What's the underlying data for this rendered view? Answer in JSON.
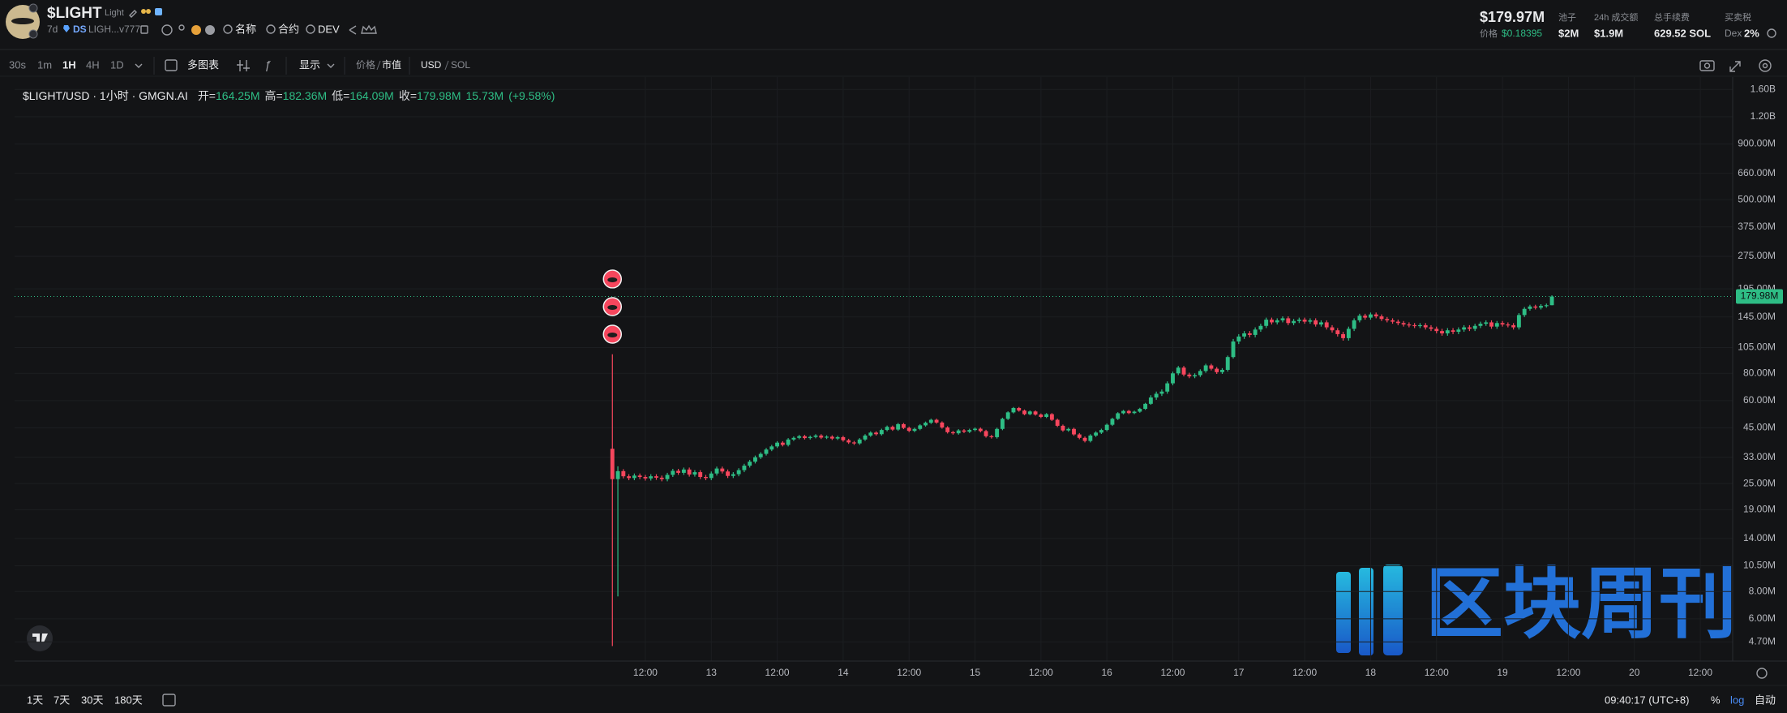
{
  "header": {
    "symbol": "$LIGHT",
    "name": "Light",
    "age": "7d",
    "tag": "DS",
    "address": "LIGH...v777",
    "search": [
      "名称",
      "合约",
      "DEV"
    ],
    "market_cap": "$179.97M",
    "price_label": "价格",
    "price": "$0.18395",
    "stats": [
      {
        "label": "池子",
        "value": "$2M"
      },
      {
        "label": "24h 成交额",
        "value": "$1.9M"
      },
      {
        "label": "总手续费",
        "value": "629.52 SOL"
      }
    ],
    "tax_label": "买卖税",
    "tax_kind": "Dex",
    "tax_value": "2%"
  },
  "toolbar": {
    "intervals": [
      "30s",
      "1m",
      "1H",
      "4H",
      "1D"
    ],
    "multi_chart": "多图表",
    "display": "显示",
    "value_modes": [
      "价格",
      "市值"
    ],
    "currencies": [
      "USD",
      "SOL"
    ]
  },
  "footer": {
    "ranges": [
      "1天",
      "7天",
      "30天",
      "180天"
    ],
    "clock": "09:40:17 (UTC+8)",
    "scale_modes": [
      "%",
      "log",
      "自动"
    ]
  },
  "watermark": "区块周刊",
  "chart_data": {
    "type": "candlestick",
    "title": "$LIGHT/USD · 1小时 · GMGN.AI",
    "ohlc_legend": [
      {
        "label": "开=",
        "value": "164.25M"
      },
      {
        "label": "高=",
        "value": "182.36M"
      },
      {
        "label": "低=",
        "value": "164.09M"
      },
      {
        "label": "收=",
        "value": "179.98M"
      }
    ],
    "volume": "15.73M",
    "change": "(+9.58%)",
    "up_color": "#2ebd85",
    "down_color": "#f6465d",
    "log_y": true,
    "grid": true,
    "last_price": {
      "value": 179.98,
      "label": "179.98M"
    },
    "xlim": [
      -126.8,
      185.9
    ],
    "xticks": [
      {
        "value": -12,
        "label": "12:00"
      },
      {
        "value": 0,
        "label": "13"
      },
      {
        "value": 12,
        "label": "12:00"
      },
      {
        "value": 24,
        "label": "14"
      },
      {
        "value": 36,
        "label": "12:00"
      },
      {
        "value": 48,
        "label": "15"
      },
      {
        "value": 60,
        "label": "12:00"
      },
      {
        "value": 72,
        "label": "16"
      },
      {
        "value": 84,
        "label": "12:00"
      },
      {
        "value": 96,
        "label": "17"
      },
      {
        "value": 108,
        "label": "12:00"
      },
      {
        "value": 120,
        "label": "18"
      },
      {
        "value": 132,
        "label": "12:00"
      },
      {
        "value": 144,
        "label": "19"
      },
      {
        "value": 156,
        "label": "12:00"
      },
      {
        "value": 168,
        "label": "20"
      },
      {
        "value": 180,
        "label": "12:00"
      }
    ],
    "ylim": [
      3.84,
      1824
    ],
    "yticks": [
      {
        "value": 1600,
        "label": "1.60B"
      },
      {
        "value": 1200,
        "label": "1.20B"
      },
      {
        "value": 900,
        "label": "900.00M"
      },
      {
        "value": 660,
        "label": "660.00M"
      },
      {
        "value": 500,
        "label": "500.00M"
      },
      {
        "value": 375,
        "label": "375.00M"
      },
      {
        "value": 275,
        "label": "275.00M"
      },
      {
        "value": 195,
        "label": "195.00M"
      },
      {
        "value": 145,
        "label": "145.00M"
      },
      {
        "value": 105,
        "label": "105.00M"
      },
      {
        "value": 80,
        "label": "80.00M"
      },
      {
        "value": 60,
        "label": "60.00M"
      },
      {
        "value": 45,
        "label": "45.00M"
      },
      {
        "value": 33,
        "label": "33.00M"
      },
      {
        "value": 25,
        "label": "25.00M"
      },
      {
        "value": 19,
        "label": "19.00M"
      },
      {
        "value": 14,
        "label": "14.00M"
      },
      {
        "value": 10.5,
        "label": "10.50M"
      },
      {
        "value": 8,
        "label": "8.00M"
      },
      {
        "value": 6,
        "label": "6.00M"
      },
      {
        "value": 4.7,
        "label": "4.70M"
      }
    ],
    "x": [
      -18,
      -17,
      -16,
      -15,
      -14,
      -13,
      -12,
      -11,
      -10,
      -9,
      -8,
      -7,
      -6,
      -5,
      -4,
      -3,
      -2,
      -1,
      0,
      1,
      2,
      3,
      4,
      5,
      6,
      7,
      8,
      9,
      10,
      11,
      12,
      13,
      14,
      15,
      16,
      17,
      18,
      19,
      20,
      21,
      22,
      23,
      24,
      25,
      26,
      27,
      28,
      29,
      30,
      31,
      32,
      33,
      34,
      35,
      36,
      37,
      38,
      39,
      40,
      41,
      42,
      43,
      44,
      45,
      46,
      47,
      48,
      49,
      50,
      51,
      52,
      53,
      54,
      55,
      56,
      57,
      58,
      59,
      60,
      61,
      62,
      63,
      64,
      65,
      66,
      67,
      68,
      69,
      70,
      71,
      72,
      73,
      74,
      75,
      76,
      77,
      78,
      79,
      80,
      81,
      82,
      83,
      84,
      85,
      86,
      87,
      88,
      89,
      90,
      91,
      92,
      93,
      94,
      95,
      96,
      97,
      98,
      99,
      100,
      101,
      102,
      103,
      104,
      105,
      106,
      107,
      108,
      109,
      110,
      111,
      112,
      113,
      114,
      115,
      116,
      117,
      118,
      119,
      120,
      121,
      122,
      123,
      124,
      125,
      126,
      127,
      128,
      129,
      130,
      131,
      132,
      133,
      134,
      135,
      136,
      137,
      138,
      139,
      140,
      141,
      142,
      143,
      144,
      145,
      146,
      147,
      148,
      149,
      150,
      151,
      152,
      153
    ],
    "open": [
      36.1,
      26.2,
      28.5,
      27.0,
      26.5,
      27.2,
      26.8,
      26.4,
      27.0,
      26.6,
      26.2,
      27.4,
      28.6,
      28.0,
      29.0,
      27.5,
      28.2,
      26.8,
      26.5,
      27.8,
      29.3,
      28.4,
      27.1,
      27.6,
      28.8,
      30.2,
      31.5,
      33.0,
      34.2,
      35.8,
      37.0,
      38.5,
      37.6,
      39.8,
      40.5,
      41.2,
      40.4,
      40.9,
      41.5,
      40.6,
      41.0,
      40.2,
      40.8,
      39.5,
      38.6,
      38.2,
      39.8,
      41.5,
      42.8,
      42.1,
      44.0,
      45.5,
      44.2,
      46.8,
      45.0,
      43.6,
      44.5,
      46.2,
      47.5,
      49.0,
      47.6,
      45.2,
      43.0,
      42.5,
      43.8,
      43.2,
      44.0,
      44.6,
      43.5,
      41.2,
      40.8,
      44.5,
      49.5,
      53.0,
      55.5,
      54.0,
      52.0,
      53.5,
      51.8,
      50.5,
      52.0,
      49.0,
      46.0,
      43.8,
      44.5,
      42.0,
      40.5,
      39.2,
      41.5,
      42.8,
      44.0,
      46.5,
      49.5,
      52.5,
      53.8,
      52.6,
      53.4,
      55.0,
      58.0,
      62.0,
      64.5,
      66.0,
      72.0,
      80.0,
      85.0,
      79.0,
      77.5,
      78.5,
      82.0,
      87.0,
      84.0,
      81.0,
      83.0,
      95.0,
      112,
      118,
      122,
      120,
      127,
      132,
      141,
      137,
      140,
      143,
      136,
      139,
      141,
      138,
      140,
      134,
      137,
      130,
      126,
      121,
      116,
      128,
      140,
      147,
      144,
      149,
      146,
      142,
      140,
      138,
      136,
      134,
      133,
      132,
      133,
      130,
      128,
      125,
      122,
      126,
      124,
      127,
      130,
      128,
      132,
      135,
      137,
      131,
      136,
      134,
      133,
      130,
      148,
      158,
      162,
      160,
      163,
      164.25
    ],
    "high": [
      97.8,
      30.0,
      29.1,
      27.6,
      27.8,
      27.8,
      27.4,
      27.6,
      27.6,
      27.2,
      28.0,
      29.2,
      29.2,
      29.6,
      29.6,
      28.8,
      28.8,
      27.4,
      28.4,
      29.9,
      29.9,
      29.0,
      28.2,
      29.4,
      30.8,
      32.1,
      33.6,
      34.8,
      36.4,
      37.6,
      39.1,
      39.1,
      40.4,
      41.1,
      41.8,
      41.8,
      41.5,
      42.1,
      42.1,
      41.6,
      41.6,
      41.4,
      41.4,
      40.1,
      39.2,
      40.4,
      42.1,
      43.4,
      43.4,
      44.6,
      46.1,
      46.1,
      47.4,
      47.4,
      45.6,
      45.1,
      46.8,
      48.1,
      49.6,
      49.6,
      48.2,
      45.8,
      43.6,
      44.4,
      44.4,
      44.6,
      45.2,
      45.2,
      44.1,
      41.8,
      45.1,
      50.1,
      53.6,
      56.1,
      56.1,
      54.6,
      54.1,
      54.1,
      52.4,
      52.6,
      52.6,
      49.6,
      46.6,
      45.1,
      45.1,
      42.6,
      41.1,
      42.1,
      43.4,
      44.6,
      47.1,
      50.1,
      53.1,
      54.4,
      54.4,
      54.0,
      55.6,
      58.6,
      63.5,
      66.0,
      67.5,
      73.5,
      81.5,
      86.5,
      86.5,
      80.5,
      80.0,
      83.5,
      88.5,
      88.5,
      85.5,
      84.5,
      96.5,
      115,
      121,
      125,
      125,
      130,
      135,
      144,
      144,
      143,
      146,
      146,
      142,
      144,
      144,
      143,
      143,
      140,
      140,
      133,
      129,
      124,
      131,
      143,
      150,
      150,
      152,
      152,
      149,
      145,
      143,
      141,
      139,
      137,
      136,
      136,
      136,
      133,
      131,
      128,
      129,
      129,
      130,
      133,
      133,
      135,
      138,
      140,
      140,
      139,
      139,
      137,
      136,
      151,
      161,
      165,
      165,
      166,
      167,
      182.36
    ],
    "low": [
      4.5,
      7.6,
      26.4,
      25.9,
      25.9,
      26.2,
      25.8,
      25.8,
      26.0,
      25.6,
      25.6,
      26.8,
      27.4,
      27.4,
      26.9,
      26.9,
      26.2,
      25.9,
      25.9,
      27.2,
      27.8,
      26.5,
      26.5,
      27.0,
      28.2,
      29.6,
      30.9,
      32.4,
      33.6,
      35.2,
      36.4,
      37.0,
      37.0,
      39.2,
      39.9,
      39.8,
      39.8,
      40.3,
      40.0,
      40.0,
      39.6,
      39.6,
      38.9,
      38.0,
      37.6,
      37.6,
      39.2,
      40.9,
      41.5,
      41.5,
      43.4,
      43.6,
      43.6,
      44.4,
      43.0,
      43.0,
      43.9,
      45.6,
      46.9,
      47.0,
      44.6,
      42.4,
      41.9,
      41.9,
      42.6,
      42.6,
      43.4,
      42.9,
      40.6,
      40.2,
      40.2,
      43.9,
      48.9,
      52.4,
      53.4,
      51.4,
      51.4,
      51.2,
      49.9,
      49.9,
      48.4,
      45.4,
      43.2,
      43.2,
      41.4,
      39.9,
      38.6,
      38.6,
      40.9,
      42.2,
      43.4,
      45.9,
      48.9,
      51.9,
      52.0,
      52.0,
      52.8,
      54.4,
      57.4,
      60.5,
      63.0,
      64.5,
      70.5,
      78.5,
      77.5,
      76.0,
      76.0,
      77.0,
      80.5,
      82.5,
      79.5,
      79.5,
      81.5,
      93.5,
      109,
      115,
      117,
      117,
      124,
      129,
      134,
      134,
      137,
      133,
      133,
      136,
      135,
      135,
      131,
      131,
      127,
      123,
      118,
      113,
      113,
      125,
      137,
      141,
      141,
      143,
      139,
      137,
      135,
      133,
      131,
      130,
      129,
      129,
      127,
      125,
      122,
      119,
      119,
      121,
      121,
      124,
      125,
      125,
      129,
      132,
      128,
      128,
      131,
      130,
      127,
      127,
      145,
      155,
      157,
      157,
      160,
      164.09
    ],
    "close": [
      26.2,
      28.5,
      27.0,
      26.5,
      27.2,
      26.8,
      26.4,
      27.0,
      26.6,
      26.2,
      27.4,
      28.6,
      28.0,
      29.0,
      27.5,
      28.2,
      26.8,
      26.5,
      27.8,
      29.3,
      28.4,
      27.1,
      27.6,
      28.8,
      30.2,
      31.5,
      33.0,
      34.2,
      35.8,
      37.0,
      38.5,
      37.6,
      39.8,
      40.5,
      41.2,
      40.4,
      40.9,
      41.5,
      40.6,
      41.0,
      40.2,
      40.8,
      39.5,
      38.6,
      38.2,
      39.8,
      41.5,
      42.8,
      42.1,
      44.0,
      45.5,
      44.2,
      46.8,
      45.0,
      43.6,
      44.5,
      46.2,
      47.5,
      49.0,
      47.6,
      45.2,
      43.0,
      42.5,
      43.8,
      43.2,
      44.0,
      44.6,
      43.5,
      41.2,
      40.8,
      44.5,
      49.5,
      53.0,
      55.5,
      54.0,
      52.0,
      53.5,
      51.8,
      50.5,
      52.0,
      49.0,
      46.0,
      43.8,
      44.5,
      42.0,
      40.5,
      39.2,
      41.5,
      42.8,
      44.0,
      46.5,
      49.5,
      52.5,
      53.8,
      52.6,
      53.4,
      55.0,
      58.0,
      62.0,
      64.5,
      66.0,
      72.0,
      80.0,
      85.0,
      79.0,
      77.5,
      78.5,
      82.0,
      87.0,
      84.0,
      81.0,
      83.0,
      95.0,
      112,
      118,
      122,
      120,
      127,
      132,
      141,
      137,
      140,
      143,
      136,
      139,
      141,
      138,
      140,
      134,
      137,
      130,
      126,
      121,
      116,
      128,
      140,
      147,
      144,
      149,
      146,
      142,
      140,
      138,
      136,
      134,
      133,
      132,
      133,
      130,
      128,
      125,
      122,
      126,
      124,
      127,
      130,
      128,
      132,
      135,
      137,
      131,
      136,
      134,
      133,
      130,
      148,
      158,
      162,
      160,
      163,
      164.25,
      179.98
    ]
  }
}
